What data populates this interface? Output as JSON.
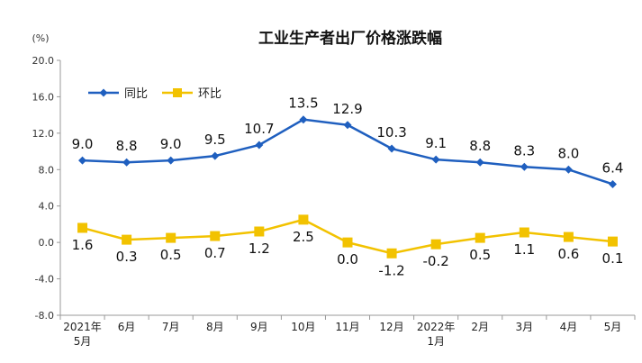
{
  "chart_data": {
    "type": "line",
    "title": "工业生产者出厂价格涨跌幅",
    "unit_label": "(%)",
    "ylim": [
      -8.0,
      20.0
    ],
    "yticks": [
      "20.0",
      "16.0",
      "12.0",
      "8.0",
      "4.0",
      "0.0",
      "-4.0",
      "-8.0"
    ],
    "ytick_values": [
      20,
      16,
      12,
      8,
      4,
      0,
      -4,
      -8
    ],
    "categories": [
      [
        "2021年",
        "5月"
      ],
      [
        "6月"
      ],
      [
        "7月"
      ],
      [
        "8月"
      ],
      [
        "9月"
      ],
      [
        "10月"
      ],
      [
        "11月"
      ],
      [
        "12月"
      ],
      [
        "2022年",
        "1月"
      ],
      [
        "2月"
      ],
      [
        "3月"
      ],
      [
        "4月"
      ],
      [
        "5月"
      ]
    ],
    "legend_position": "top-left",
    "series": [
      {
        "name": "同比",
        "color": "#1F5FBF",
        "marker": "diamond",
        "values": [
          9.0,
          8.8,
          9.0,
          9.5,
          10.7,
          13.5,
          12.9,
          10.3,
          9.1,
          8.8,
          8.3,
          8.0,
          6.4
        ],
        "labels": [
          "9.0",
          "8.8",
          "9.0",
          "9.5",
          "10.7",
          "13.5",
          "12.9",
          "10.3",
          "9.1",
          "8.8",
          "8.3",
          "8.0",
          "6.4"
        ]
      },
      {
        "name": "环比",
        "color": "#F2C200",
        "marker": "square",
        "values": [
          1.6,
          0.3,
          0.5,
          0.7,
          1.2,
          2.5,
          0.0,
          -1.2,
          -0.2,
          0.5,
          1.1,
          0.6,
          0.1
        ],
        "labels": [
          "1.6",
          "0.3",
          "0.5",
          "0.7",
          "1.2",
          "2.5",
          "0.0",
          "-1.2",
          "-0.2",
          "0.5",
          "1.1",
          "0.6",
          "0.1"
        ]
      }
    ]
  }
}
